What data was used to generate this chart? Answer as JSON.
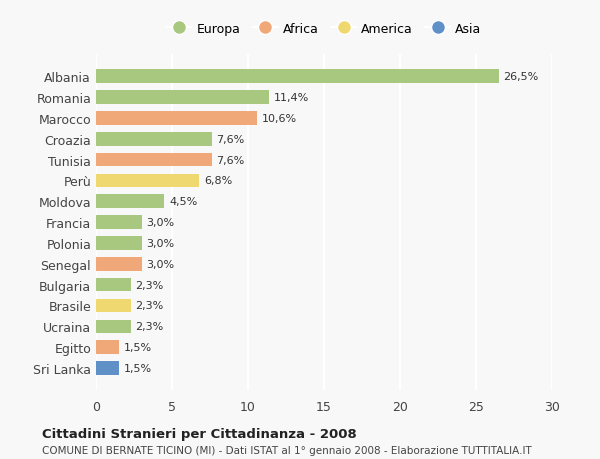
{
  "countries": [
    "Albania",
    "Romania",
    "Marocco",
    "Croazia",
    "Tunisia",
    "Perù",
    "Moldova",
    "Francia",
    "Polonia",
    "Senegal",
    "Bulgaria",
    "Brasile",
    "Ucraina",
    "Egitto",
    "Sri Lanka"
  ],
  "values": [
    26.5,
    11.4,
    10.6,
    7.6,
    7.6,
    6.8,
    4.5,
    3.0,
    3.0,
    3.0,
    2.3,
    2.3,
    2.3,
    1.5,
    1.5
  ],
  "labels": [
    "26,5%",
    "11,4%",
    "10,6%",
    "7,6%",
    "7,6%",
    "6,8%",
    "4,5%",
    "3,0%",
    "3,0%",
    "3,0%",
    "2,3%",
    "2,3%",
    "2,3%",
    "1,5%",
    "1,5%"
  ],
  "continents": [
    "Europa",
    "Europa",
    "Africa",
    "Europa",
    "Africa",
    "America",
    "Europa",
    "Europa",
    "Europa",
    "Africa",
    "Europa",
    "America",
    "Europa",
    "Africa",
    "Asia"
  ],
  "colors": {
    "Europa": "#a8c880",
    "Africa": "#f0a878",
    "America": "#f0d870",
    "Asia": "#6090c8"
  },
  "legend_order": [
    "Europa",
    "Africa",
    "America",
    "Asia"
  ],
  "title": "Cittadini Stranieri per Cittadinanza - 2008",
  "subtitle": "COMUNE DI BERNATE TICINO (MI) - Dati ISTAT al 1° gennaio 2008 - Elaborazione TUTTITALIA.IT",
  "xlim": [
    0,
    30
  ],
  "xticks": [
    0,
    5,
    10,
    15,
    20,
    25,
    30
  ],
  "background_color": "#f8f8f8",
  "grid_color": "#ffffff",
  "bar_height": 0.65
}
